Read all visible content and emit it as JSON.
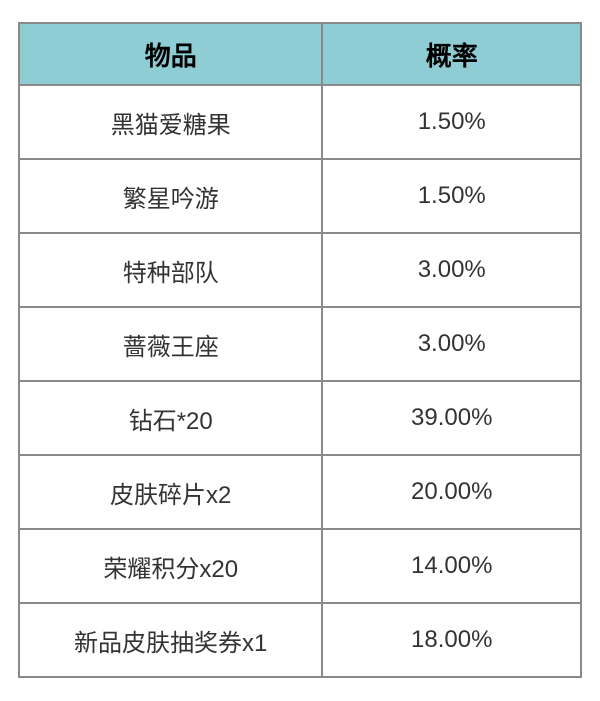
{
  "table": {
    "header_bg_color": "#8ecdd4",
    "header_text_color": "#000000",
    "border_color": "#8a8a8a",
    "cell_bg_color": "#ffffff",
    "cell_text_color": "#333333",
    "header_fontsize": 26,
    "cell_fontsize": 24,
    "columns": [
      {
        "key": "item",
        "label": "物品",
        "width": "54%"
      },
      {
        "key": "rate",
        "label": "概率",
        "width": "46%"
      }
    ],
    "rows": [
      {
        "item": "黑猫爱糖果",
        "rate": "1.50%"
      },
      {
        "item": "繁星吟游",
        "rate": "1.50%"
      },
      {
        "item": "特种部队",
        "rate": "3.00%"
      },
      {
        "item": "蔷薇王座",
        "rate": "3.00%"
      },
      {
        "item": "钻石*20",
        "rate": "39.00%"
      },
      {
        "item": "皮肤碎片x2",
        "rate": "20.00%"
      },
      {
        "item": "荣耀积分x20",
        "rate": "14.00%"
      },
      {
        "item": "新品皮肤抽奖券x1",
        "rate": "18.00%"
      }
    ]
  }
}
